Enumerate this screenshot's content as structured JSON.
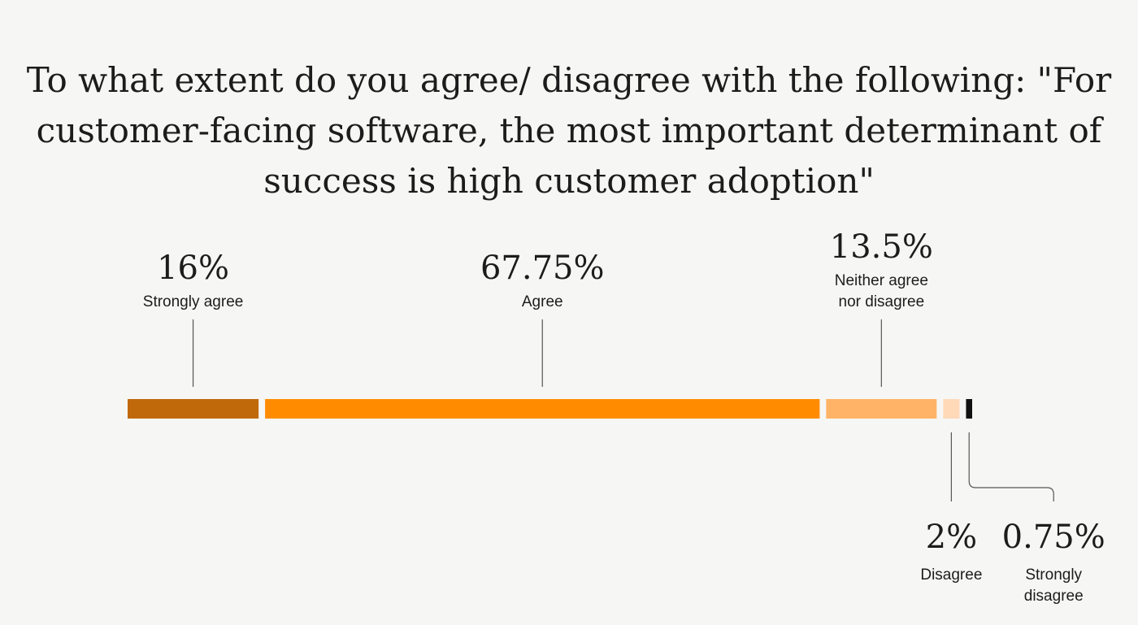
{
  "chart_data": {
    "type": "bar",
    "orientation": "horizontal-stacked",
    "title_lines": [
      "To what extent do you agree/ disagree with the following: \"For",
      "customer-facing software, the most important determinant of",
      "success is high customer adoption\""
    ],
    "categories": [
      "Strongly agree",
      "Agree",
      "Neither agree nor disagree",
      "Disagree",
      "Strongly disagree"
    ],
    "category_label_lines": [
      [
        "Strongly agree"
      ],
      [
        "Agree"
      ],
      [
        "Neither agree",
        "nor disagree"
      ],
      [
        "Disagree"
      ],
      [
        "Strongly",
        "disagree"
      ]
    ],
    "values": [
      16,
      67.75,
      13.5,
      2,
      0.75
    ],
    "value_labels": [
      "16%",
      "67.75%",
      "13.5%",
      "2%",
      "0.75%"
    ],
    "colors": [
      "#c0690a",
      "#ff8c00",
      "#ffb366",
      "#ffd9b8",
      "#111111"
    ],
    "unit": "%"
  }
}
